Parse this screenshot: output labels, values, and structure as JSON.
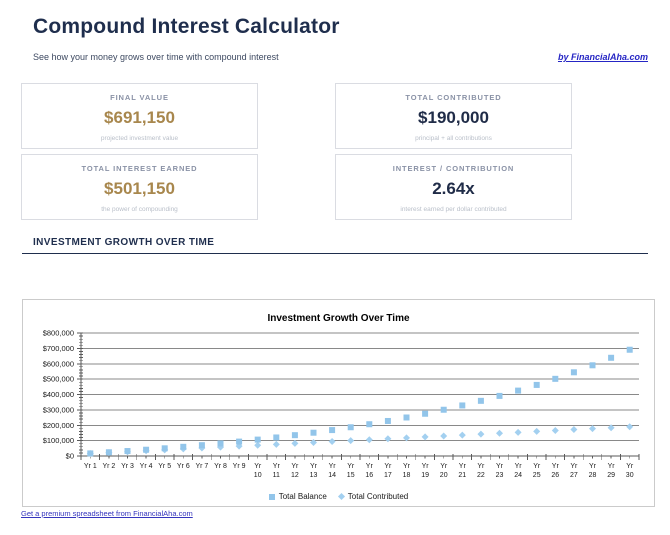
{
  "page": {
    "title": "Compound Interest Calculator",
    "subtitle": "See how your money grows over time with compound interest",
    "byline": "by FinancialAha.com",
    "section_header": "INVESTMENT GROWTH OVER TIME",
    "footer_link": "Get a premium spreadsheet from FinancialAha.com"
  },
  "colors": {
    "navy": "#202c48",
    "gold": "#a8874d",
    "label_gray": "#8a92a6",
    "caption_gray": "#b9bfc9",
    "link_blue": "#2525c4",
    "gridline": "#898989",
    "axis": "#5a5a5a",
    "chart_text": "#1a1a1a",
    "series_balance": "#92c5ea",
    "series_contributed": "#a3d0f0"
  },
  "cards": [
    {
      "label": "FINAL VALUE",
      "value": "$691,150",
      "caption": "projected investment value",
      "value_color": "gold"
    },
    {
      "label": "TOTAL CONTRIBUTED",
      "value": "$190,000",
      "caption": "principal + all contributions",
      "value_color": "navy"
    },
    {
      "label": "TOTAL INTEREST EARNED",
      "value": "$501,150",
      "caption": "the power of compounding",
      "value_color": "gold"
    },
    {
      "label": "INTEREST / CONTRIBUTION",
      "value": "2.64x",
      "caption": "interest earned per dollar contributed",
      "value_color": "navy"
    }
  ],
  "chart_data": {
    "type": "scatter",
    "title": "Investment Growth Over Time",
    "xlabel": "",
    "ylabel": "",
    "categories": [
      "Yr 1",
      "Yr 2",
      "Yr 3",
      "Yr 4",
      "Yr 5",
      "Yr 6",
      "Yr 7",
      "Yr 8",
      "Yr 9",
      "Yr 10",
      "Yr 11",
      "Yr 12",
      "Yr 13",
      "Yr 14",
      "Yr 15",
      "Yr 16",
      "Yr 17",
      "Yr 18",
      "Yr 19",
      "Yr 20",
      "Yr 21",
      "Yr 22",
      "Yr 23",
      "Yr 24",
      "Yr 25",
      "Yr 26",
      "Yr 27",
      "Yr 28",
      "Yr 29",
      "Yr 30"
    ],
    "series": [
      {
        "name": "Total Balance",
        "marker": "square",
        "color": "#92c5ea",
        "values": [
          16919,
          24339,
          32294,
          40825,
          49973,
          59782,
          70300,
          81578,
          93672,
          106640,
          120545,
          135456,
          151445,
          168588,
          186971,
          206683,
          227820,
          250485,
          274789,
          300850,
          328794,
          358759,
          390891,
          425343,
          462288,
          501902,
          544380,
          589929,
          638773,
          691150
        ]
      },
      {
        "name": "Total Contributed",
        "marker": "diamond",
        "color": "#a3d0f0",
        "values": [
          16000,
          22000,
          28000,
          34000,
          40000,
          46000,
          52000,
          58000,
          64000,
          70000,
          76000,
          82000,
          88000,
          94000,
          100000,
          106000,
          112000,
          118000,
          124000,
          130000,
          136000,
          142000,
          148000,
          154000,
          160000,
          166000,
          172000,
          178000,
          184000,
          190000
        ]
      }
    ],
    "ylim": [
      0,
      800000
    ],
    "ytick_step": 100000,
    "y_minor_step": 20000,
    "ytick_labels": [
      "$0",
      "$100,000",
      "$200,000",
      "$300,000",
      "$400,000",
      "$500,000",
      "$600,000",
      "$700,000",
      "$800,000"
    ],
    "grid": true,
    "legend_position": "bottom"
  }
}
